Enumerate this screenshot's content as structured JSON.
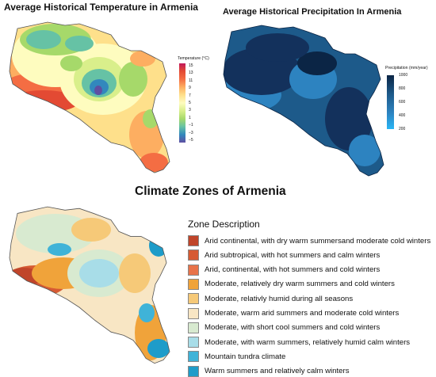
{
  "titles": {
    "temperature": "Average Historical Temperature in Armenia",
    "precipitation": "Average Historical Precipitation In Armenia",
    "zones": "Climate Zones of Armenia"
  },
  "temperature_legend": {
    "title": "Temperature (°C)",
    "ticks": [
      "15",
      "13",
      "11",
      "9",
      "7",
      "5",
      "3",
      "1",
      "−1",
      "−3",
      "−5"
    ],
    "colors": [
      "#c2185b",
      "#e34a33",
      "#f46d43",
      "#fdae61",
      "#fee08b",
      "#fefcbf",
      "#d9ef8b",
      "#a6d96a",
      "#66c2a5",
      "#3288bd",
      "#5e4fa2"
    ]
  },
  "precipitation_legend": {
    "title": "Precipitation (mm/year)",
    "ticks": [
      "1000",
      "800",
      "600",
      "400",
      "200"
    ],
    "colors": [
      "#0b2545",
      "#13315c",
      "#1d5a8a",
      "#2d83c0",
      "#29b6f6"
    ]
  },
  "zone_legend": {
    "title": "Zone Description",
    "items": [
      {
        "label": "Arid continental, with dry warm summersand moderate cold winters",
        "color": "#c0452a"
      },
      {
        "label": "Arid subtropical, with hot summers and calm winters",
        "color": "#d65a33"
      },
      {
        "label": "Arid, continental, with hot summers and cold winters",
        "color": "#e8734a"
      },
      {
        "label": "Moderate, relatively dry warm summers and cold winters",
        "color": "#f0a33a"
      },
      {
        "label": "Moderate, relativly humid during all seasons",
        "color": "#f6c978"
      },
      {
        "label": "Moderate, warm arid summers and moderate cold winters",
        "color": "#f8e6c4"
      },
      {
        "label": "Moderate, with short cool summers and cold winters",
        "color": "#d8ead0"
      },
      {
        "label": "Moderate, with warm summers, relatively humid calm winters",
        "color": "#a8dde8"
      },
      {
        "label": "Mountain tundra climate",
        "color": "#3fb3d8"
      },
      {
        "label": "Warm summers and relatively calm winters",
        "color": "#1e9cc9"
      }
    ]
  }
}
